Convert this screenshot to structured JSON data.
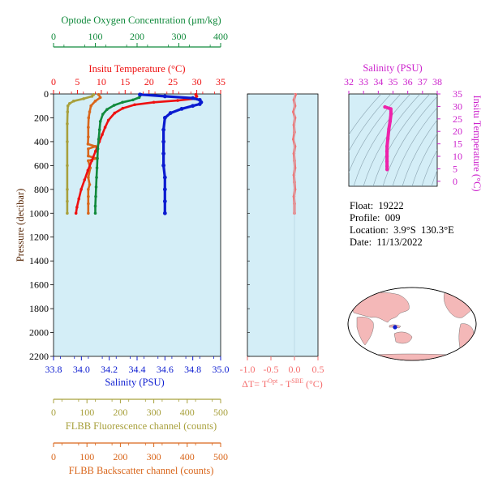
{
  "colors": {
    "panel_bg": "#d4eef7",
    "oxygen": "#118a3c",
    "temperature": "#ee1111",
    "salinity": "#0b1bd0",
    "fluorescence": "#a8a03c",
    "backscatter": "#d9661b",
    "delta_t": "#f56e6e",
    "ts_axis": "#cc22cc",
    "pressure_axis": "#5a2a0a",
    "land": "#f4b8b8",
    "ocean": "#ffffff"
  },
  "info": {
    "float": "Float:  19222",
    "profile": "Profile:  009",
    "location": "Location:  3.9°S  130.3°E",
    "date": "Date:  11/13/2022"
  },
  "axes": {
    "oxygen_label": "Optode Oxygen Concentration (μm/kg)",
    "temperature_label": "Insitu Temperature (°C)",
    "pressure_label": "Pressure (decibar)",
    "salinity_label": "Salinity (PSU)",
    "dt_label": "ΔT= T",
    "dt_sup1": "Opt",
    "dt_mid": " - T",
    "dt_sup2": "SBE",
    "dt_unit": " (°C)",
    "fluor_label": "FLBB Fluorescence channel (counts)",
    "backscatter_label": "FLBB Backscatter channel (counts)",
    "ts_salinity_label": "Salinity (PSU)",
    "ts_temperature_label": "Insitu Temperature (°C)"
  },
  "chart_data": [
    {
      "type": "line",
      "panel": "profile",
      "y_axis": {
        "label": "Pressure (decibar)",
        "range": [
          2200,
          0
        ],
        "ticks": [
          0,
          200,
          400,
          600,
          800,
          1000,
          1200,
          1400,
          1600,
          1800,
          2000,
          2200
        ]
      },
      "x_axes": [
        {
          "name": "oxygen",
          "label": "Optode Oxygen Concentration (μm/kg)",
          "range": [
            0,
            400
          ],
          "ticks": [
            0,
            100,
            200,
            300,
            400
          ]
        },
        {
          "name": "temperature",
          "label": "Insitu Temperature (°C)",
          "range": [
            0,
            35
          ],
          "ticks": [
            0,
            5,
            10,
            15,
            20,
            25,
            30,
            35
          ]
        },
        {
          "name": "salinity",
          "label": "Salinity (PSU)",
          "range": [
            33.8,
            35.0
          ],
          "ticks": [
            "33.8",
            "34.0",
            "34.2",
            "34.4",
            "34.6",
            "34.8",
            "35.0"
          ]
        },
        {
          "name": "fluorescence",
          "label": "FLBB Fluorescence channel (counts)",
          "range": [
            0,
            500
          ],
          "ticks": [
            0,
            100,
            200,
            300,
            400,
            500
          ]
        },
        {
          "name": "backscatter",
          "label": "FLBB Backscatter channel (counts)",
          "range": [
            0,
            500
          ],
          "ticks": [
            0,
            100,
            200,
            300,
            400,
            500
          ]
        }
      ],
      "series": [
        {
          "axis": "temperature",
          "points": [
            [
              29.8,
              5
            ],
            [
              30.0,
              20
            ],
            [
              29.5,
              40
            ],
            [
              26,
              55
            ],
            [
              21,
              70
            ],
            [
              17,
              90
            ],
            [
              14.5,
              120
            ],
            [
              12.8,
              160
            ],
            [
              11.5,
              220
            ],
            [
              10.8,
              280
            ],
            [
              10.2,
              340
            ],
            [
              9.6,
              400
            ],
            [
              8.8,
              480
            ],
            [
              8.0,
              560
            ],
            [
              7.2,
              640
            ],
            [
              6.5,
              720
            ],
            [
              5.8,
              800
            ],
            [
              5.3,
              880
            ],
            [
              4.9,
              950
            ],
            [
              4.7,
              1000
            ]
          ]
        },
        {
          "axis": "oxygen",
          "points": [
            [
              210,
              5
            ],
            [
              205,
              30
            ],
            [
              190,
              50
            ],
            [
              165,
              70
            ],
            [
              145,
              95
            ],
            [
              128,
              130
            ],
            [
              118,
              170
            ],
            [
              112,
              230
            ],
            [
              110,
              300
            ],
            [
              108,
              380
            ],
            [
              106,
              460
            ],
            [
              105,
              540
            ],
            [
              104,
              620
            ],
            [
              103,
              700
            ],
            [
              102,
              780
            ],
            [
              101,
              860
            ],
            [
              100,
              940
            ],
            [
              100,
              1000
            ]
          ]
        },
        {
          "axis": "salinity",
          "points": [
            [
              34.42,
              5
            ],
            [
              34.6,
              20
            ],
            [
              34.8,
              35
            ],
            [
              34.85,
              50
            ],
            [
              34.86,
              70
            ],
            [
              34.85,
              85
            ],
            [
              34.8,
              100
            ],
            [
              34.72,
              125
            ],
            [
              34.64,
              160
            ],
            [
              34.6,
              200
            ],
            [
              34.59,
              300
            ],
            [
              34.59,
              400
            ],
            [
              34.59,
              500
            ],
            [
              34.59,
              600
            ],
            [
              34.6,
              700
            ],
            [
              34.6,
              800
            ],
            [
              34.6,
              900
            ],
            [
              34.6,
              1000
            ]
          ]
        },
        {
          "axis": "fluorescence",
          "points": [
            [
              120,
              5
            ],
            [
              115,
              20
            ],
            [
              90,
              40
            ],
            [
              60,
              60
            ],
            [
              48,
              80
            ],
            [
              43,
              100
            ],
            [
              42,
              150
            ],
            [
              41,
              250
            ],
            [
              41,
              400
            ],
            [
              41,
              600
            ],
            [
              41,
              800
            ],
            [
              41,
              900
            ],
            [
              41,
              1000
            ]
          ]
        },
        {
          "axis": "backscatter",
          "points": [
            [
              135,
              5
            ],
            [
              140,
              30
            ],
            [
              125,
              60
            ],
            [
              112,
              100
            ],
            [
              108,
              150
            ],
            [
              105,
              200
            ],
            [
              104,
              280
            ],
            [
              104,
              360
            ],
            [
              103,
              420
            ],
            [
              125,
              440
            ],
            [
              104,
              460
            ],
            [
              104,
              520
            ],
            [
              128,
              540
            ],
            [
              104,
              560
            ],
            [
              110,
              620
            ],
            [
              104,
              700
            ],
            [
              108,
              760
            ],
            [
              104,
              800
            ],
            [
              104,
              860
            ],
            [
              104,
              920
            ],
            [
              104,
              1000
            ]
          ]
        }
      ]
    },
    {
      "type": "line",
      "panel": "delta_t",
      "y_axis": {
        "range": [
          2200,
          0
        ]
      },
      "x_axis": {
        "range": [
          -1.0,
          0.5
        ],
        "ticks": [
          "-1.0",
          "-0.5",
          "0.0",
          "0.5"
        ]
      },
      "series": [
        {
          "name": "delta_t",
          "points": [
            [
              0.02,
              5
            ],
            [
              -0.01,
              50
            ],
            [
              0.01,
              100
            ],
            [
              -0.02,
              150
            ],
            [
              0.01,
              200
            ],
            [
              -0.01,
              260
            ],
            [
              0.0,
              320
            ],
            [
              -0.02,
              380
            ],
            [
              0.01,
              440
            ],
            [
              -0.01,
              500
            ],
            [
              0.0,
              560
            ],
            [
              0.01,
              620
            ],
            [
              -0.01,
              680
            ],
            [
              0.0,
              740
            ],
            [
              0.01,
              800
            ],
            [
              -0.01,
              860
            ],
            [
              0.0,
              920
            ],
            [
              0.0,
              1000
            ]
          ]
        }
      ]
    },
    {
      "type": "line",
      "panel": "ts_diagram",
      "x_axis": {
        "label": "Salinity (PSU)",
        "range": [
          32,
          38
        ],
        "ticks": [
          32,
          33,
          34,
          35,
          36,
          37,
          38
        ]
      },
      "y_axis": {
        "label": "Insitu Temperature (°C)",
        "range": [
          -2,
          35
        ],
        "ticks": [
          0,
          5,
          10,
          15,
          20,
          25,
          30,
          35
        ]
      },
      "series": [
        {
          "name": "ts",
          "points": [
            [
              34.45,
              29.8
            ],
            [
              34.85,
              29.0
            ],
            [
              34.86,
              27.0
            ],
            [
              34.8,
              24.0
            ],
            [
              34.72,
              21.0
            ],
            [
              34.65,
              17.0
            ],
            [
              34.6,
              14.0
            ],
            [
              34.59,
              12.0
            ],
            [
              34.59,
              10.0
            ],
            [
              34.59,
              8.0
            ],
            [
              34.6,
              6.0
            ],
            [
              34.6,
              4.7
            ]
          ]
        }
      ]
    }
  ]
}
